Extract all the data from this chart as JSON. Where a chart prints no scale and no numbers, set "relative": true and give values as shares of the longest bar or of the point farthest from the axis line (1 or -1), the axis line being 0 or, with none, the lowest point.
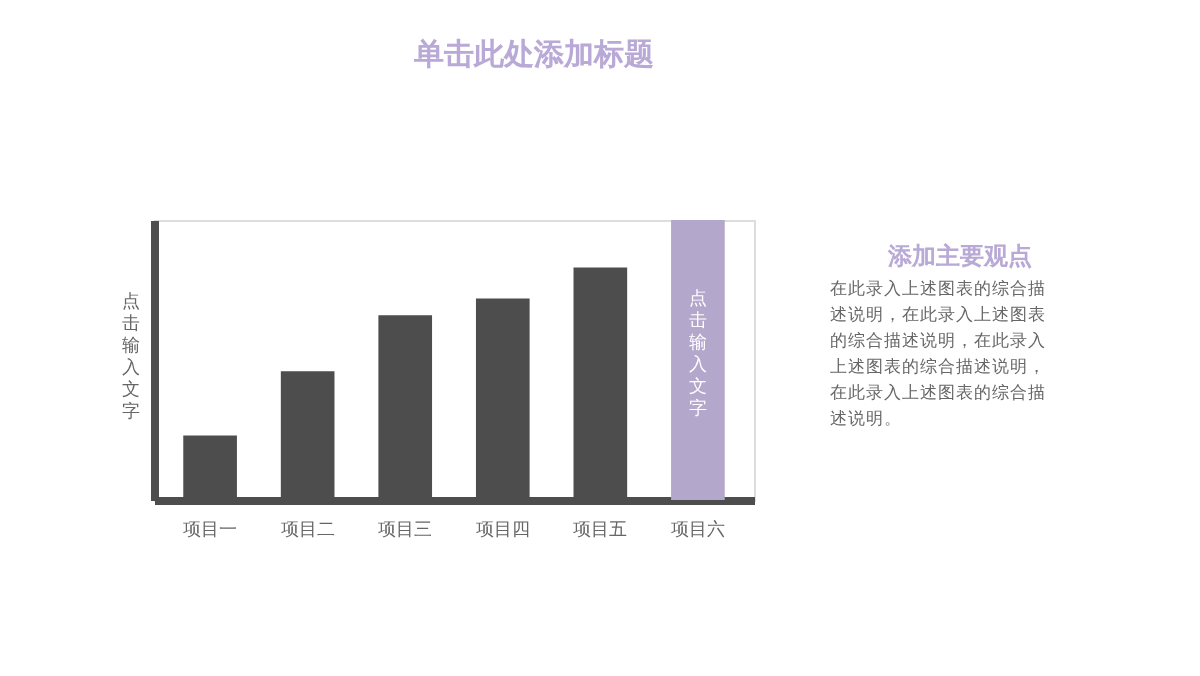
{
  "chart_data": {
    "type": "bar",
    "title": "单击此处添加标题",
    "ylabel": "点击输入文字",
    "categories": [
      "项目一",
      "项目二",
      "项目三",
      "项目四",
      "项目五",
      "项目六"
    ],
    "values": [
      0.23,
      0.46,
      0.66,
      0.72,
      0.83,
      1
    ],
    "colors": [
      "#4d4d4d",
      "#4d4d4d",
      "#4d4d4d",
      "#4d4d4d",
      "#4d4d4d",
      "#b4a7cc"
    ],
    "relative": true,
    "tick_labels": "x",
    "grid": false,
    "annotations": [
      "添加主要观点",
      "在此录入上述图表的综合描述说明，在此录入上述图表的综合描述说明，在此录入上述图表的综合描述说明，在此录入上述图表的综合描述说明。",
      "点击输入文字"
    ]
  }
}
